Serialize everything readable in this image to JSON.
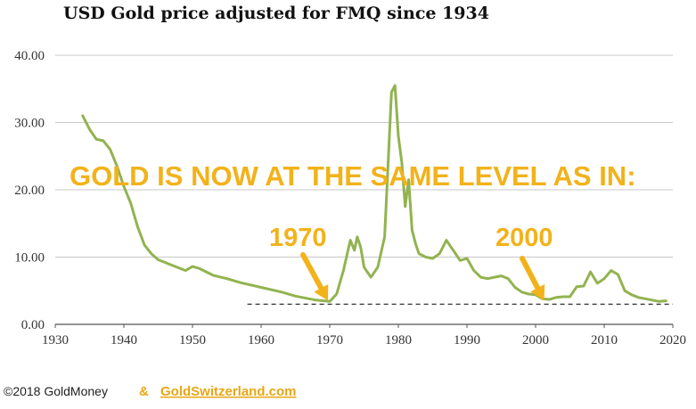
{
  "chart_data": {
    "type": "line",
    "title": "USD Gold price adjusted for FMQ since 1934",
    "xlabel": "",
    "ylabel": "",
    "xlim": [
      1930,
      2020
    ],
    "ylim": [
      0,
      40
    ],
    "yticks": [
      "0.00",
      "10.00",
      "20.00",
      "30.00",
      "40.00"
    ],
    "xticks": [
      "1930",
      "1940",
      "1950",
      "1960",
      "1970",
      "1980",
      "1990",
      "2000",
      "2010",
      "2020"
    ],
    "grid": "horizontal",
    "line_color": "#92b350",
    "series": [
      {
        "name": "USD Gold price adjusted for FMQ",
        "x": [
          1934,
          1935,
          1936,
          1937,
          1938,
          1939,
          1940,
          1941,
          1942,
          1943,
          1944,
          1945,
          1946,
          1947,
          1948,
          1949,
          1950,
          1951,
          1952,
          1953,
          1955,
          1957,
          1960,
          1963,
          1965,
          1968,
          1970,
          1971,
          1972,
          1973,
          1973.6,
          1974,
          1974.5,
          1975,
          1976,
          1977,
          1978,
          1979,
          1979.5,
          1980,
          1980.5,
          1981,
          1981.5,
          1982,
          1982.5,
          1983,
          1984,
          1985,
          1986,
          1987,
          1988,
          1989,
          1990,
          1991,
          1992,
          1993,
          1994,
          1995,
          1996,
          1997,
          1998,
          1999,
          2000,
          2001,
          2002,
          2003,
          2004,
          2005,
          2006,
          2007,
          2008,
          2009,
          2010,
          2011,
          2012,
          2013,
          2014,
          2015,
          2016,
          2017,
          2018,
          2019
        ],
        "values": [
          31.0,
          29.0,
          27.5,
          27.3,
          26.0,
          23.5,
          20.5,
          18.0,
          14.5,
          11.8,
          10.5,
          9.6,
          9.2,
          8.8,
          8.4,
          8.0,
          8.6,
          8.3,
          7.8,
          7.3,
          6.8,
          6.2,
          5.5,
          4.8,
          4.2,
          3.6,
          3.4,
          4.5,
          8.0,
          12.5,
          11.0,
          13.0,
          11.5,
          8.5,
          7.0,
          8.5,
          13.0,
          34.5,
          35.5,
          28.0,
          24.0,
          17.5,
          21.5,
          14.0,
          12.0,
          10.5,
          10.0,
          9.8,
          10.5,
          12.5,
          11.0,
          9.5,
          9.8,
          8.0,
          7.0,
          6.8,
          7.0,
          7.2,
          6.8,
          5.5,
          4.8,
          4.5,
          4.4,
          3.8,
          3.7,
          4.0,
          4.1,
          4.1,
          5.6,
          5.7,
          7.8,
          6.1,
          6.8,
          8.0,
          7.4,
          5.0,
          4.4,
          4.0,
          3.8,
          3.6,
          3.4,
          3.5
        ]
      }
    ],
    "reference_line": {
      "value": 3.0,
      "x_start": 1958,
      "x_end": 2020,
      "style": "dashed"
    },
    "annotations": {
      "headline": "GOLD IS NOW AT THE SAME LEVEL AS IN:",
      "labels": [
        {
          "text": "1970",
          "points_to_year": 1970
        },
        {
          "text": "2000",
          "points_to_year": 2001.5
        }
      ],
      "arrow_color": "#f2b21a"
    }
  },
  "footer": {
    "copyright": "©2018 GoldMoney",
    "ampersand": "&",
    "link": "GoldSwitzerland.com"
  }
}
